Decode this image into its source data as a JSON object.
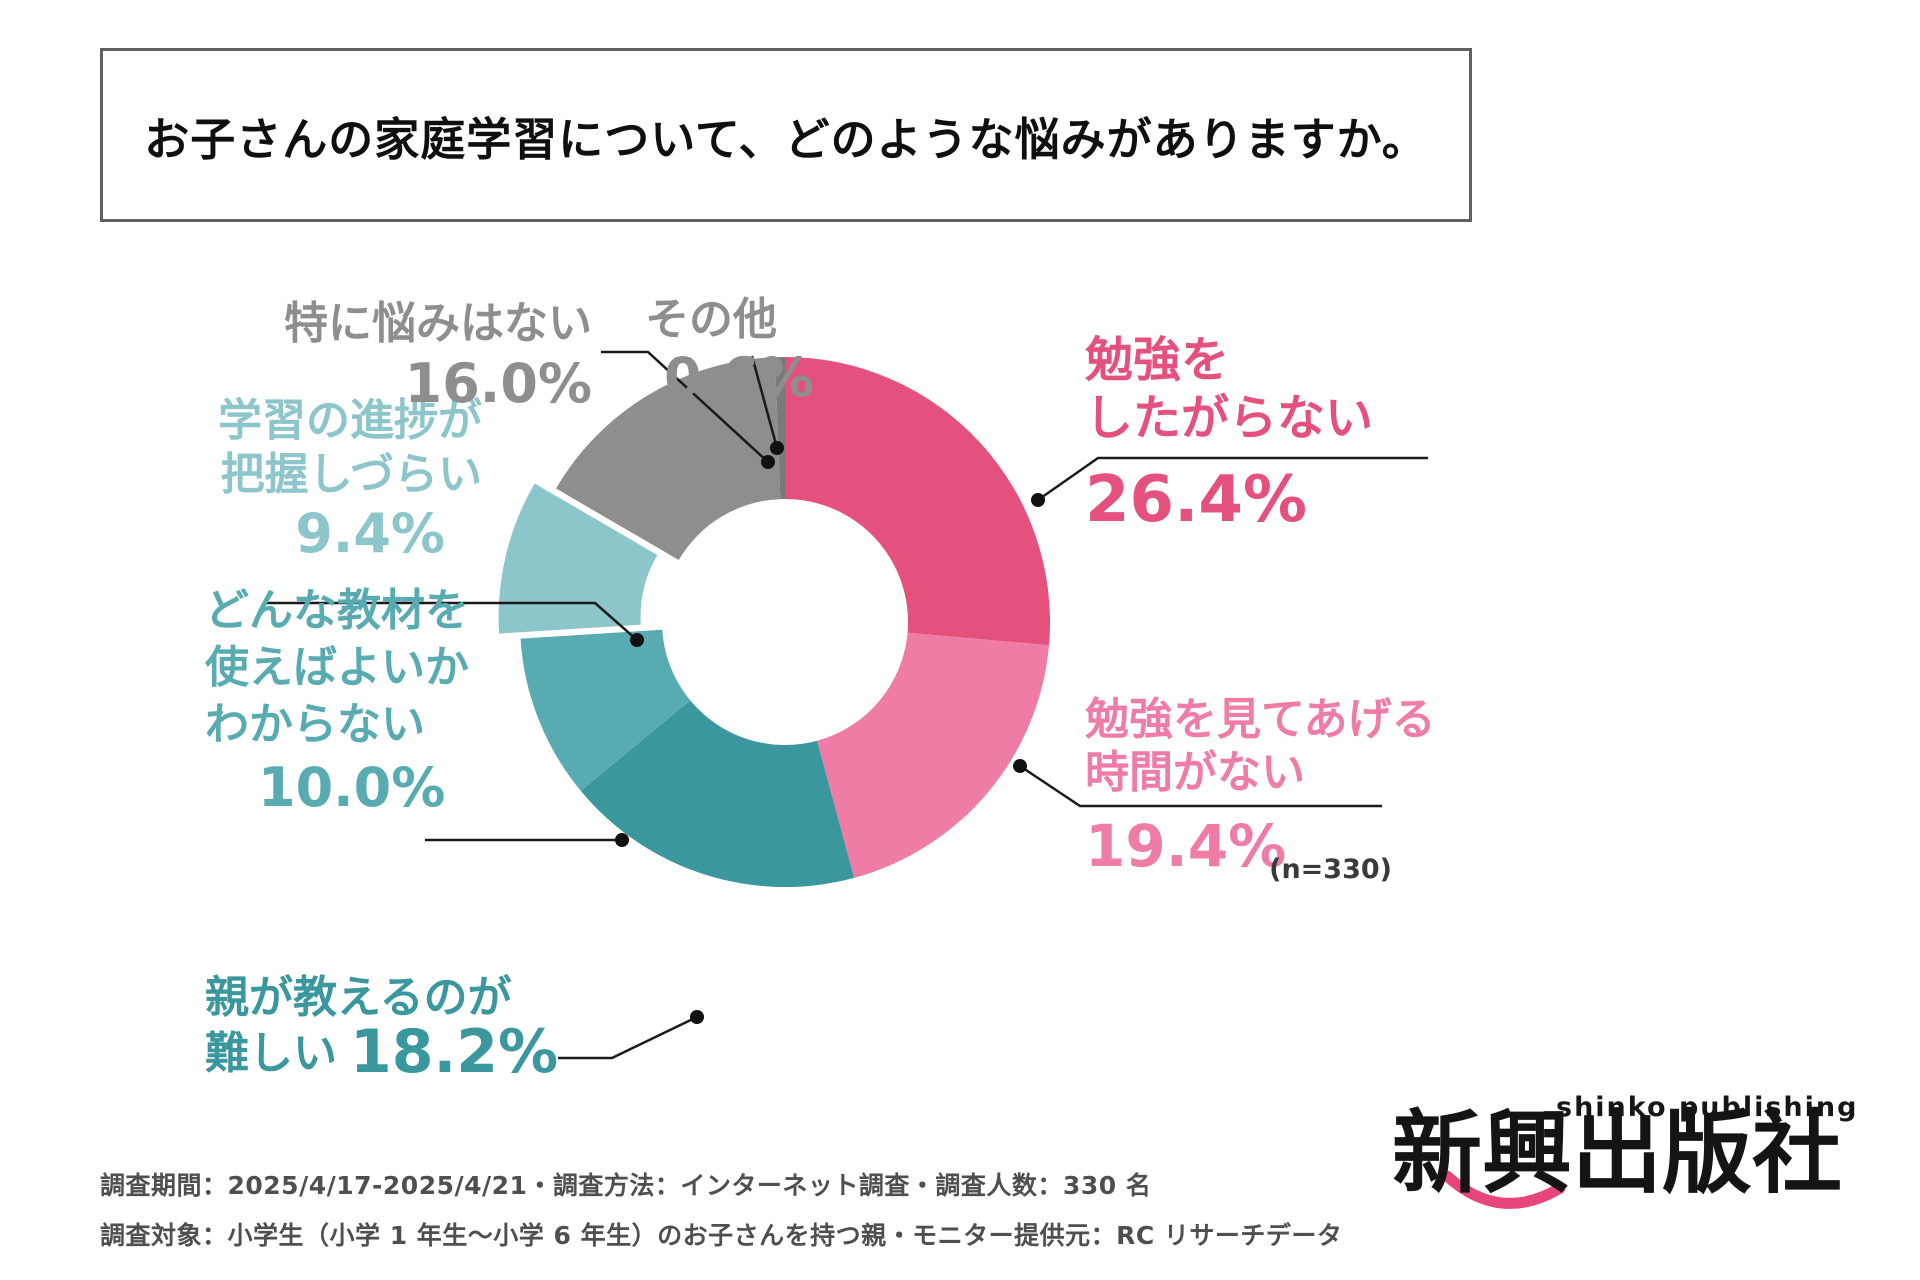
{
  "title": "お子さんの家庭学習について、どのような悩みがありますか。",
  "n_label": "(n=330)",
  "chart_data": {
    "type": "pie",
    "donut": true,
    "title": "お子さんの家庭学習について、どのような悩みがありますか。",
    "n": 330,
    "unit": "%",
    "start_angle": "12-oclock",
    "direction": "clockwise",
    "legend_position": "callout-labels-around-chart",
    "slices": [
      {
        "label": "勉強をしたがらない",
        "lines": [
          "勉強を",
          "したがらない"
        ],
        "value": 26.4,
        "display": "26.4%",
        "color": "#E5517D",
        "exploded": false
      },
      {
        "label": "勉強を見てあげる時間がない",
        "lines": [
          "勉強を見てあげる",
          "時間がない"
        ],
        "value": 19.4,
        "display": "19.4%",
        "color": "#EE7CA5",
        "exploded": false
      },
      {
        "label": "親が教えるのが難しい",
        "lines": [
          "親が教えるのが",
          "難しい"
        ],
        "value": 18.2,
        "display": "18.2%",
        "color": "#3A979D",
        "exploded": false
      },
      {
        "label": "どんな教材を使えばよいかわからない",
        "lines": [
          "どんな教材を",
          "使えばよいか",
          "わからない"
        ],
        "value": 10.0,
        "display": "10.0%",
        "color": "#58ABB1",
        "exploded": false
      },
      {
        "label": "学習の進捗が把握しづらい",
        "lines": [
          "学習の進捗が",
          "把握しづらい"
        ],
        "value": 9.4,
        "display": "9.4%",
        "color": "#8CC5CA",
        "exploded": true
      },
      {
        "label": "特に悩みはない",
        "lines": [
          "特に悩みはない"
        ],
        "value": 16.0,
        "display": "16.0%",
        "color": "#8E8E8E",
        "exploded": false
      },
      {
        "label": "その他",
        "lines": [
          "その他"
        ],
        "value": 0.6,
        "display": "0.6%",
        "color": "#7A7A7A",
        "exploded": false
      }
    ],
    "label_text_colors": {
      "勉強をしたがらない": "#E5517D",
      "勉強を見てあげる時間がない": "#EE7CA5",
      "親が教えるのが難しい": "#3A979D",
      "どんな教材を使えばよいかわからない": "#58ABB1",
      "学習の進捗が把握しづらい": "#8CC5CA",
      "特に悩みはない": "#8E8E8E",
      "その他": "#8E8E8E"
    }
  },
  "footer": {
    "line1": "調査期間：2025/4/17-2025/4/21・調査方法：インターネット調査・調査人数：330 名",
    "line2": "調査対象：小学生（小学 1 年生〜小学 6 年生）のお子さんを持つ親・モニター提供元：RC リサーチデータ"
  },
  "logo": {
    "tagline": "shinko publishing",
    "name": "新興出版社",
    "smile_color": "#E8457C"
  }
}
